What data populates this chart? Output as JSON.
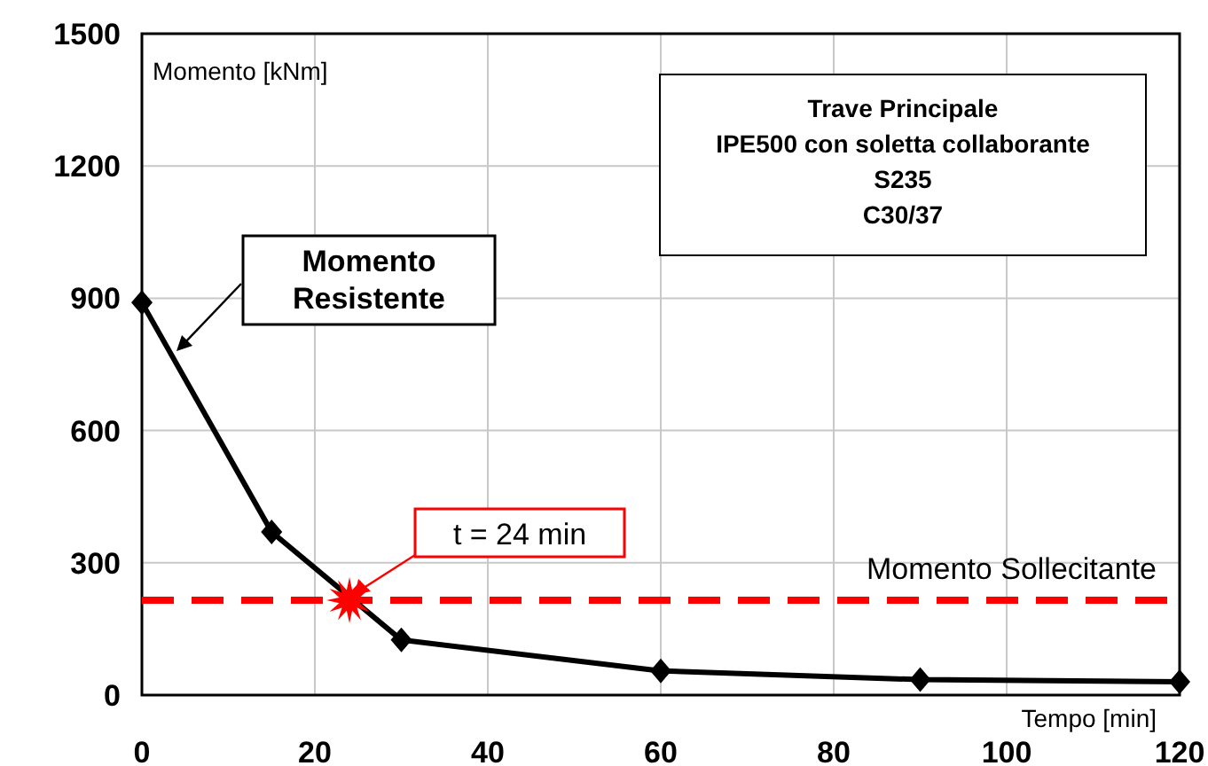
{
  "chart_data": {
    "type": "line",
    "ylabel": "Momento [kNm]",
    "xlabel": "Tempo [min]",
    "xlim": [
      0,
      120
    ],
    "xticks": [
      0,
      20,
      40,
      60,
      80,
      100,
      120
    ],
    "ylim": [
      0,
      1500
    ],
    "yticks": [
      0,
      300,
      600,
      900,
      1200,
      1500
    ],
    "grid": true,
    "marker": "diamond",
    "line_style": "solid",
    "series": [
      {
        "color": "#000000",
        "x": [
          0,
          15,
          30,
          60,
          90,
          120
        ],
        "values": [
          890,
          370,
          125,
          55,
          35,
          30
        ]
      },
      {
        "type": "scatter",
        "marker": "star",
        "color": "#ff0000",
        "x": [
          24
        ],
        "values": [
          215
        ]
      }
    ],
    "ref_lines": [
      {
        "axis": "y",
        "value": 215,
        "label": "Momento Sollecitante",
        "color": "#ff0000",
        "line_style": "dashed"
      }
    ],
    "annotations": [
      "Trave Principale\nIPE500 con soletta collaborante\nS235\nC30/37",
      "Momento\nResistente",
      {
        "text": "t = 24 min",
        "x": 24,
        "y": 215
      }
    ]
  }
}
